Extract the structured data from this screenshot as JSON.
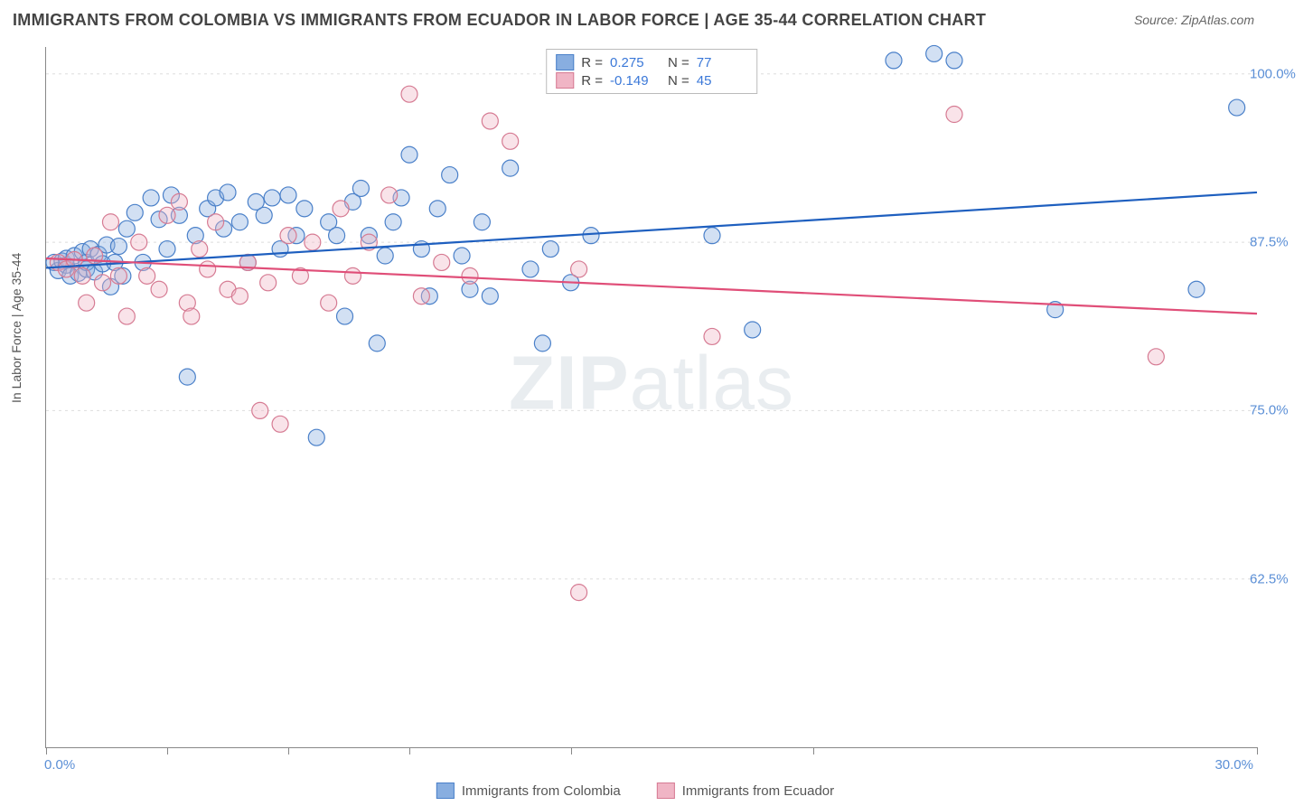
{
  "title": "IMMIGRANTS FROM COLOMBIA VS IMMIGRANTS FROM ECUADOR IN LABOR FORCE | AGE 35-44 CORRELATION CHART",
  "source": "Source: ZipAtlas.com",
  "watermark": "ZIPatlas",
  "chart": {
    "type": "scatter-with-regression",
    "ylabel": "In Labor Force | Age 35-44",
    "xlim": [
      0,
      30
    ],
    "ylim": [
      50,
      102
    ],
    "y_ticks": [
      62.5,
      75.0,
      87.5,
      100.0
    ],
    "y_tick_labels": [
      "62.5%",
      "75.0%",
      "87.5%",
      "100.0%"
    ],
    "x_ticks": [
      0,
      3,
      6,
      9,
      13,
      19,
      30
    ],
    "x_tick_labels_shown": {
      "0": "0.0%",
      "30": "30.0%"
    },
    "background_color": "#ffffff",
    "grid_color": "#dddddd",
    "grid_dash": "3,4",
    "axis_color": "#888888",
    "title_fontsize": 18,
    "title_color": "#444444",
    "label_fontsize": 14,
    "tick_label_color": "#5b8fd6",
    "tick_label_fontsize": 15,
    "marker_radius": 9,
    "marker_fill_opacity": 0.38,
    "line_width": 2.2,
    "series": [
      {
        "name": "Immigrants from Colombia",
        "color_stroke": "#4a80c9",
        "color_fill": "#88aee0",
        "line_color": "#1e5fbf",
        "R": "0.275",
        "N": "77",
        "regression": {
          "x0": 0,
          "y0": 85.6,
          "x1": 30,
          "y1": 91.2
        },
        "points": [
          [
            0.2,
            86.0
          ],
          [
            0.3,
            85.4
          ],
          [
            0.4,
            86.1
          ],
          [
            0.5,
            85.8
          ],
          [
            0.5,
            86.3
          ],
          [
            0.6,
            85.0
          ],
          [
            0.7,
            86.5
          ],
          [
            0.8,
            85.2
          ],
          [
            0.9,
            86.8
          ],
          [
            1.0,
            85.5
          ],
          [
            1.0,
            86.0
          ],
          [
            1.1,
            87.0
          ],
          [
            1.2,
            85.3
          ],
          [
            1.3,
            86.6
          ],
          [
            1.4,
            85.9
          ],
          [
            1.5,
            87.3
          ],
          [
            1.6,
            84.2
          ],
          [
            1.7,
            86.0
          ],
          [
            1.8,
            87.2
          ],
          [
            1.9,
            85.0
          ],
          [
            2.0,
            88.5
          ],
          [
            2.2,
            89.7
          ],
          [
            2.4,
            86.0
          ],
          [
            2.6,
            90.8
          ],
          [
            2.8,
            89.2
          ],
          [
            3.0,
            87.0
          ],
          [
            3.1,
            91.0
          ],
          [
            3.3,
            89.5
          ],
          [
            3.5,
            77.5
          ],
          [
            3.7,
            88.0
          ],
          [
            4.0,
            90.0
          ],
          [
            4.2,
            90.8
          ],
          [
            4.4,
            88.5
          ],
          [
            4.5,
            91.2
          ],
          [
            4.8,
            89.0
          ],
          [
            5.0,
            86.0
          ],
          [
            5.2,
            90.5
          ],
          [
            5.4,
            89.5
          ],
          [
            5.6,
            90.8
          ],
          [
            5.8,
            87.0
          ],
          [
            6.0,
            91.0
          ],
          [
            6.2,
            88.0
          ],
          [
            6.4,
            90.0
          ],
          [
            6.7,
            73.0
          ],
          [
            7.0,
            89.0
          ],
          [
            7.2,
            88.0
          ],
          [
            7.4,
            82.0
          ],
          [
            7.6,
            90.5
          ],
          [
            7.8,
            91.5
          ],
          [
            8.0,
            88.0
          ],
          [
            8.2,
            80.0
          ],
          [
            8.4,
            86.5
          ],
          [
            8.6,
            89.0
          ],
          [
            8.8,
            90.8
          ],
          [
            9.0,
            94.0
          ],
          [
            9.3,
            87.0
          ],
          [
            9.5,
            83.5
          ],
          [
            9.7,
            90.0
          ],
          [
            10.0,
            92.5
          ],
          [
            10.3,
            86.5
          ],
          [
            10.5,
            84.0
          ],
          [
            10.8,
            89.0
          ],
          [
            11.0,
            83.5
          ],
          [
            11.5,
            93.0
          ],
          [
            12.0,
            85.5
          ],
          [
            12.3,
            80.0
          ],
          [
            12.5,
            87.0
          ],
          [
            13.0,
            84.5
          ],
          [
            13.5,
            88.0
          ],
          [
            16.5,
            88.0
          ],
          [
            17.5,
            81.0
          ],
          [
            22.0,
            101.5
          ],
          [
            22.5,
            101.0
          ],
          [
            25.0,
            82.5
          ],
          [
            28.5,
            84.0
          ],
          [
            29.5,
            97.5
          ],
          [
            21.0,
            101.0
          ]
        ]
      },
      {
        "name": "Immigrants from Ecuador",
        "color_stroke": "#d67b93",
        "color_fill": "#f0b5c5",
        "line_color": "#e04e78",
        "R": "-0.149",
        "N": "45",
        "regression": {
          "x0": 0,
          "y0": 86.3,
          "x1": 30,
          "y1": 82.2
        },
        "points": [
          [
            0.3,
            86.0
          ],
          [
            0.5,
            85.5
          ],
          [
            0.7,
            86.2
          ],
          [
            0.9,
            85.0
          ],
          [
            1.0,
            83.0
          ],
          [
            1.2,
            86.5
          ],
          [
            1.4,
            84.5
          ],
          [
            1.6,
            89.0
          ],
          [
            1.8,
            85.0
          ],
          [
            2.0,
            82.0
          ],
          [
            2.3,
            87.5
          ],
          [
            2.5,
            85.0
          ],
          [
            2.8,
            84.0
          ],
          [
            3.0,
            89.5
          ],
          [
            3.3,
            90.5
          ],
          [
            3.5,
            83.0
          ],
          [
            3.8,
            87.0
          ],
          [
            4.0,
            85.5
          ],
          [
            4.5,
            84.0
          ],
          [
            4.8,
            83.5
          ],
          [
            5.0,
            86.0
          ],
          [
            5.3,
            75.0
          ],
          [
            5.5,
            84.5
          ],
          [
            5.8,
            74.0
          ],
          [
            6.0,
            88.0
          ],
          [
            6.3,
            85.0
          ],
          [
            6.6,
            87.5
          ],
          [
            7.0,
            83.0
          ],
          [
            7.3,
            90.0
          ],
          [
            7.6,
            85.0
          ],
          [
            8.0,
            87.5
          ],
          [
            8.5,
            91.0
          ],
          [
            9.0,
            98.5
          ],
          [
            9.3,
            83.5
          ],
          [
            9.8,
            86.0
          ],
          [
            10.5,
            85.0
          ],
          [
            11.0,
            96.5
          ],
          [
            11.5,
            95.0
          ],
          [
            13.2,
            61.5
          ],
          [
            13.2,
            85.5
          ],
          [
            16.5,
            80.5
          ],
          [
            22.5,
            97.0
          ],
          [
            27.5,
            79.0
          ],
          [
            4.2,
            89.0
          ],
          [
            3.6,
            82.0
          ]
        ]
      }
    ]
  },
  "legend_top": {
    "rows": [
      {
        "swatch_fill": "#88aee0",
        "swatch_stroke": "#4a80c9",
        "r_label": "R =",
        "r_val": "0.275",
        "n_label": "N =",
        "n_val": "77"
      },
      {
        "swatch_fill": "#f0b5c5",
        "swatch_stroke": "#d67b93",
        "r_label": "R =",
        "r_val": "-0.149",
        "n_label": "N =",
        "n_val": "45"
      }
    ]
  },
  "legend_bottom": {
    "items": [
      {
        "swatch_fill": "#88aee0",
        "swatch_stroke": "#4a80c9",
        "label": "Immigrants from Colombia"
      },
      {
        "swatch_fill": "#f0b5c5",
        "swatch_stroke": "#d67b93",
        "label": "Immigrants from Ecuador"
      }
    ]
  }
}
